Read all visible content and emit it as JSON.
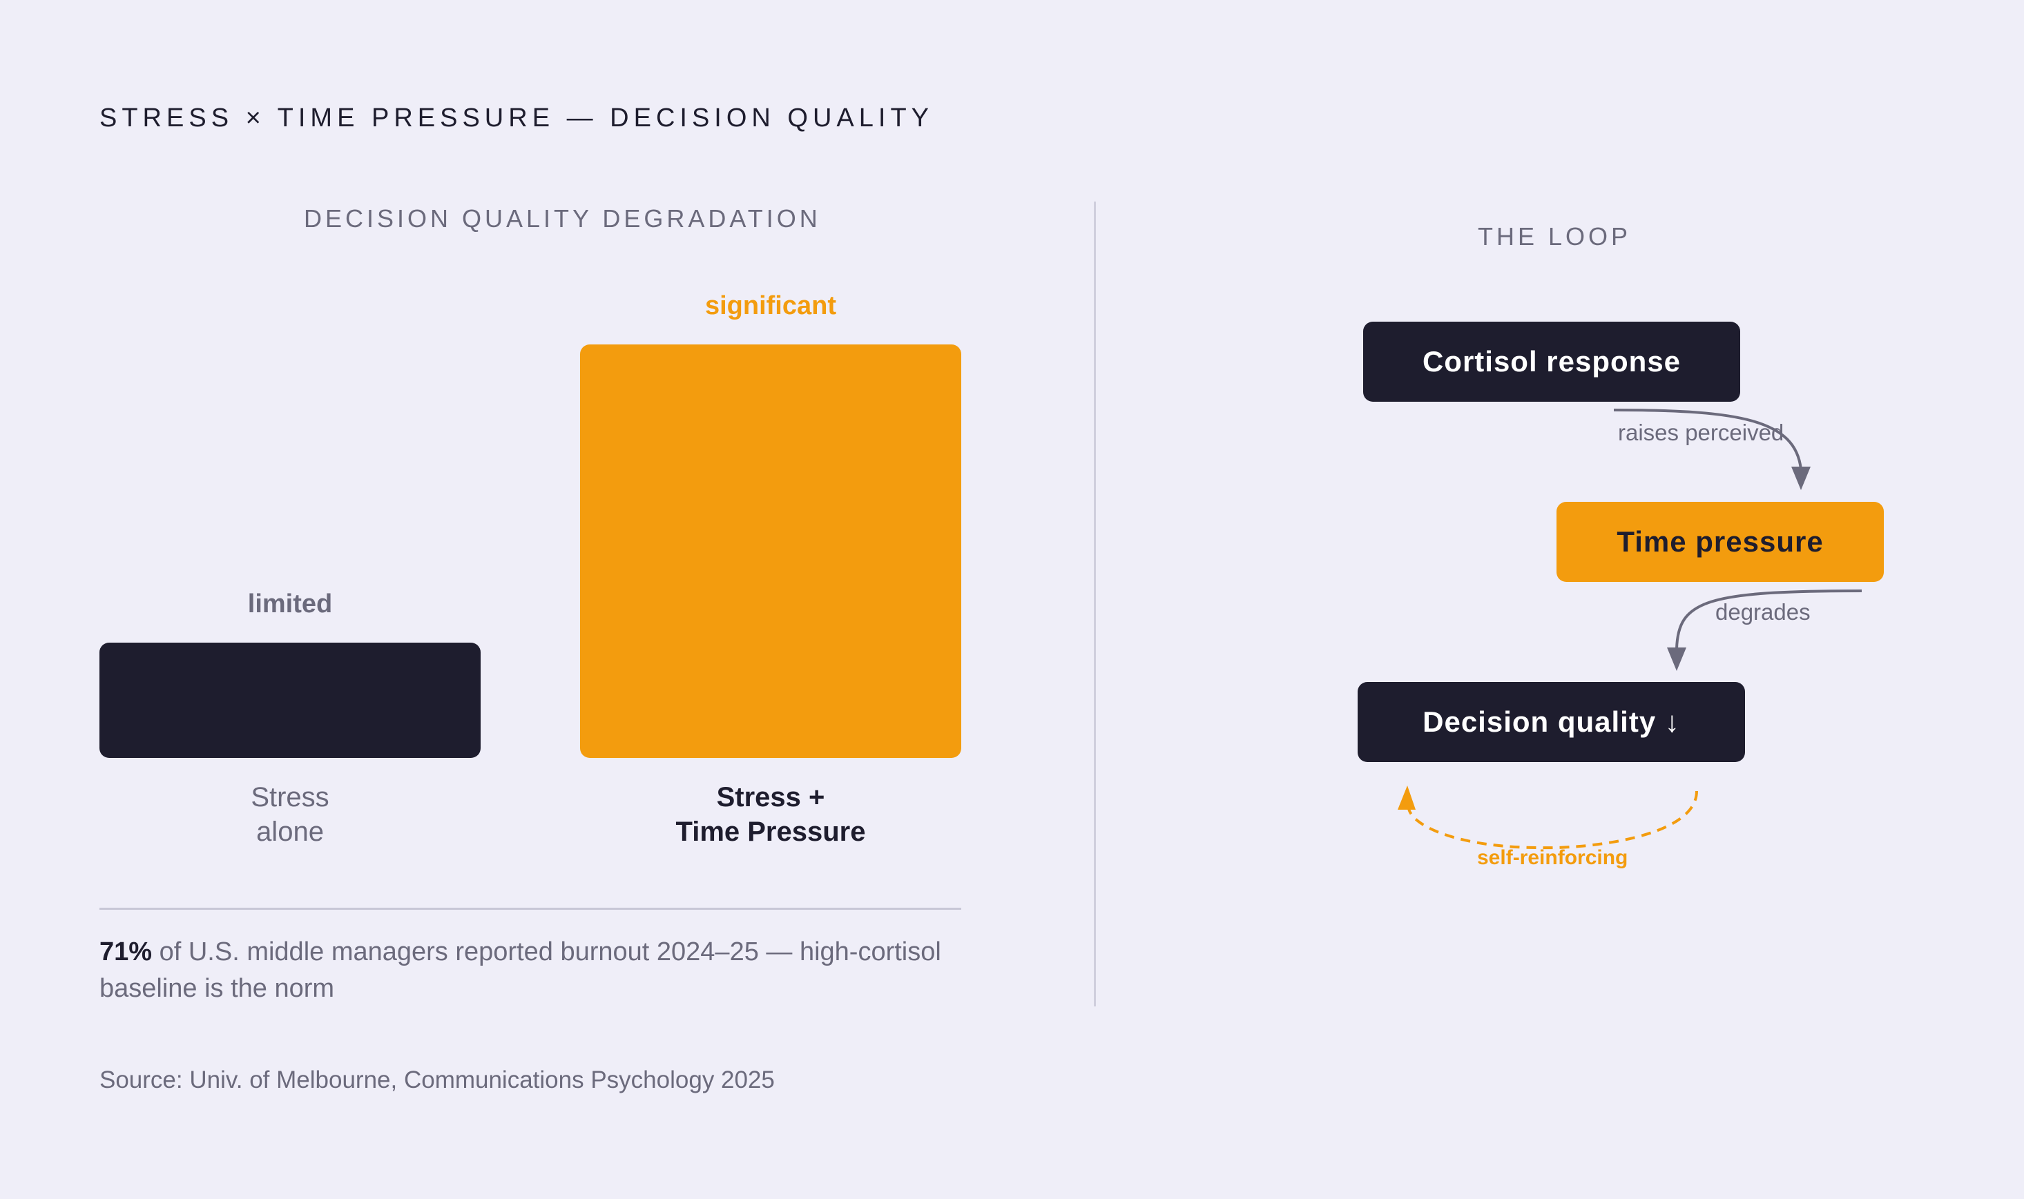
{
  "title": "STRESS × TIME PRESSURE — DECISION QUALITY",
  "left_panel": {
    "heading": "DECISION QUALITY DEGRADATION",
    "bars": [
      {
        "value_label": "limited",
        "label_lines": [
          "Stress",
          "alone"
        ],
        "color": "#1e1d2e",
        "value_color": "#6b6a7c"
      },
      {
        "value_label": "significant",
        "label_lines": [
          "Stress +",
          "Time Pressure"
        ],
        "color": "#f39c0e",
        "value_color": "#f39c0e"
      }
    ],
    "stat": {
      "number": "71%",
      "text": " of U.S. middle managers reported burnout 2024–25 — high-cortisol baseline is the norm"
    }
  },
  "right_panel": {
    "heading": "THE LOOP",
    "nodes": [
      {
        "label": "Cortisol response",
        "color": "#1e1d2e"
      },
      {
        "label": "Time pressure",
        "color": "#f39c0e"
      },
      {
        "label": "Decision quality ↓",
        "color": "#1e1d2e"
      }
    ],
    "edges": [
      {
        "label": "raises perceived"
      },
      {
        "label": "degrades"
      },
      {
        "label": "self-reinforcing",
        "color": "#f39c0e",
        "style": "dashed"
      }
    ]
  },
  "source": "Source: Univ. of Melbourne, Communications Psychology 2025",
  "colors": {
    "background": "#efeef8",
    "dark": "#1e1d2e",
    "accent": "#f39c0e",
    "muted": "#6b6a7c"
  }
}
